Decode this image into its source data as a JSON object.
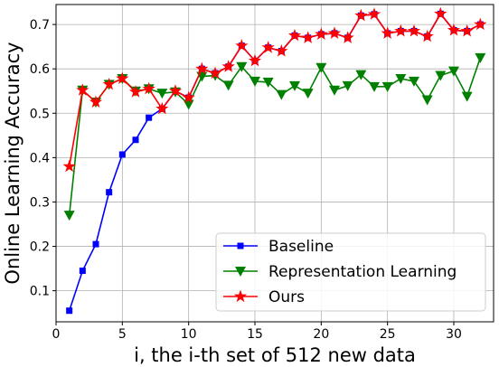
{
  "chart_data": {
    "type": "line",
    "xlabel": "i, the i-th set of 512 new data",
    "ylabel": "Online Learning Accuracy",
    "xlim": [
      0,
      33
    ],
    "ylim": [
      0.03,
      0.745
    ],
    "xticks": [
      0,
      5,
      10,
      15,
      20,
      25,
      30
    ],
    "yticks": [
      0.1,
      0.2,
      0.3,
      0.4,
      0.5,
      0.6,
      0.7
    ],
    "grid": true,
    "legend_position": "lower-right",
    "x": [
      1,
      2,
      3,
      4,
      5,
      6,
      7,
      8,
      9,
      10,
      11,
      12,
      13,
      14,
      15,
      16,
      17,
      18,
      19,
      20,
      21,
      22,
      23,
      24,
      25,
      26,
      27,
      28,
      29,
      30,
      31,
      32
    ],
    "series": [
      {
        "name": "Baseline",
        "color": "#0000ff",
        "marker": "square",
        "values": [
          0.055,
          0.145,
          0.205,
          0.322,
          0.407,
          0.44,
          0.49,
          0.51,
          0.55,
          0.535,
          0.6,
          0.59,
          0.605,
          0.652,
          0.618,
          0.648,
          0.64,
          0.675,
          0.67,
          0.678,
          0.68,
          0.67,
          0.72,
          0.723,
          0.68,
          0.685,
          0.685,
          0.673,
          0.724,
          0.687,
          0.685,
          0.7
        ]
      },
      {
        "name": "Representation Learning",
        "color": "#008000",
        "marker": "triangle-down",
        "values": [
          0.27,
          0.552,
          0.525,
          0.565,
          0.578,
          0.55,
          0.555,
          0.545,
          0.548,
          0.52,
          0.583,
          0.585,
          0.563,
          0.605,
          0.572,
          0.57,
          0.542,
          0.562,
          0.545,
          0.603,
          0.552,
          0.562,
          0.587,
          0.56,
          0.56,
          0.578,
          0.572,
          0.53,
          0.585,
          0.595,
          0.538,
          0.625
        ]
      },
      {
        "name": "Ours",
        "color": "#ff0000",
        "marker": "star",
        "values": [
          0.38,
          0.552,
          0.525,
          0.565,
          0.578,
          0.548,
          0.555,
          0.51,
          0.55,
          0.535,
          0.6,
          0.59,
          0.605,
          0.652,
          0.618,
          0.648,
          0.64,
          0.675,
          0.67,
          0.678,
          0.68,
          0.67,
          0.72,
          0.723,
          0.68,
          0.685,
          0.685,
          0.673,
          0.724,
          0.687,
          0.685,
          0.7
        ]
      }
    ]
  }
}
